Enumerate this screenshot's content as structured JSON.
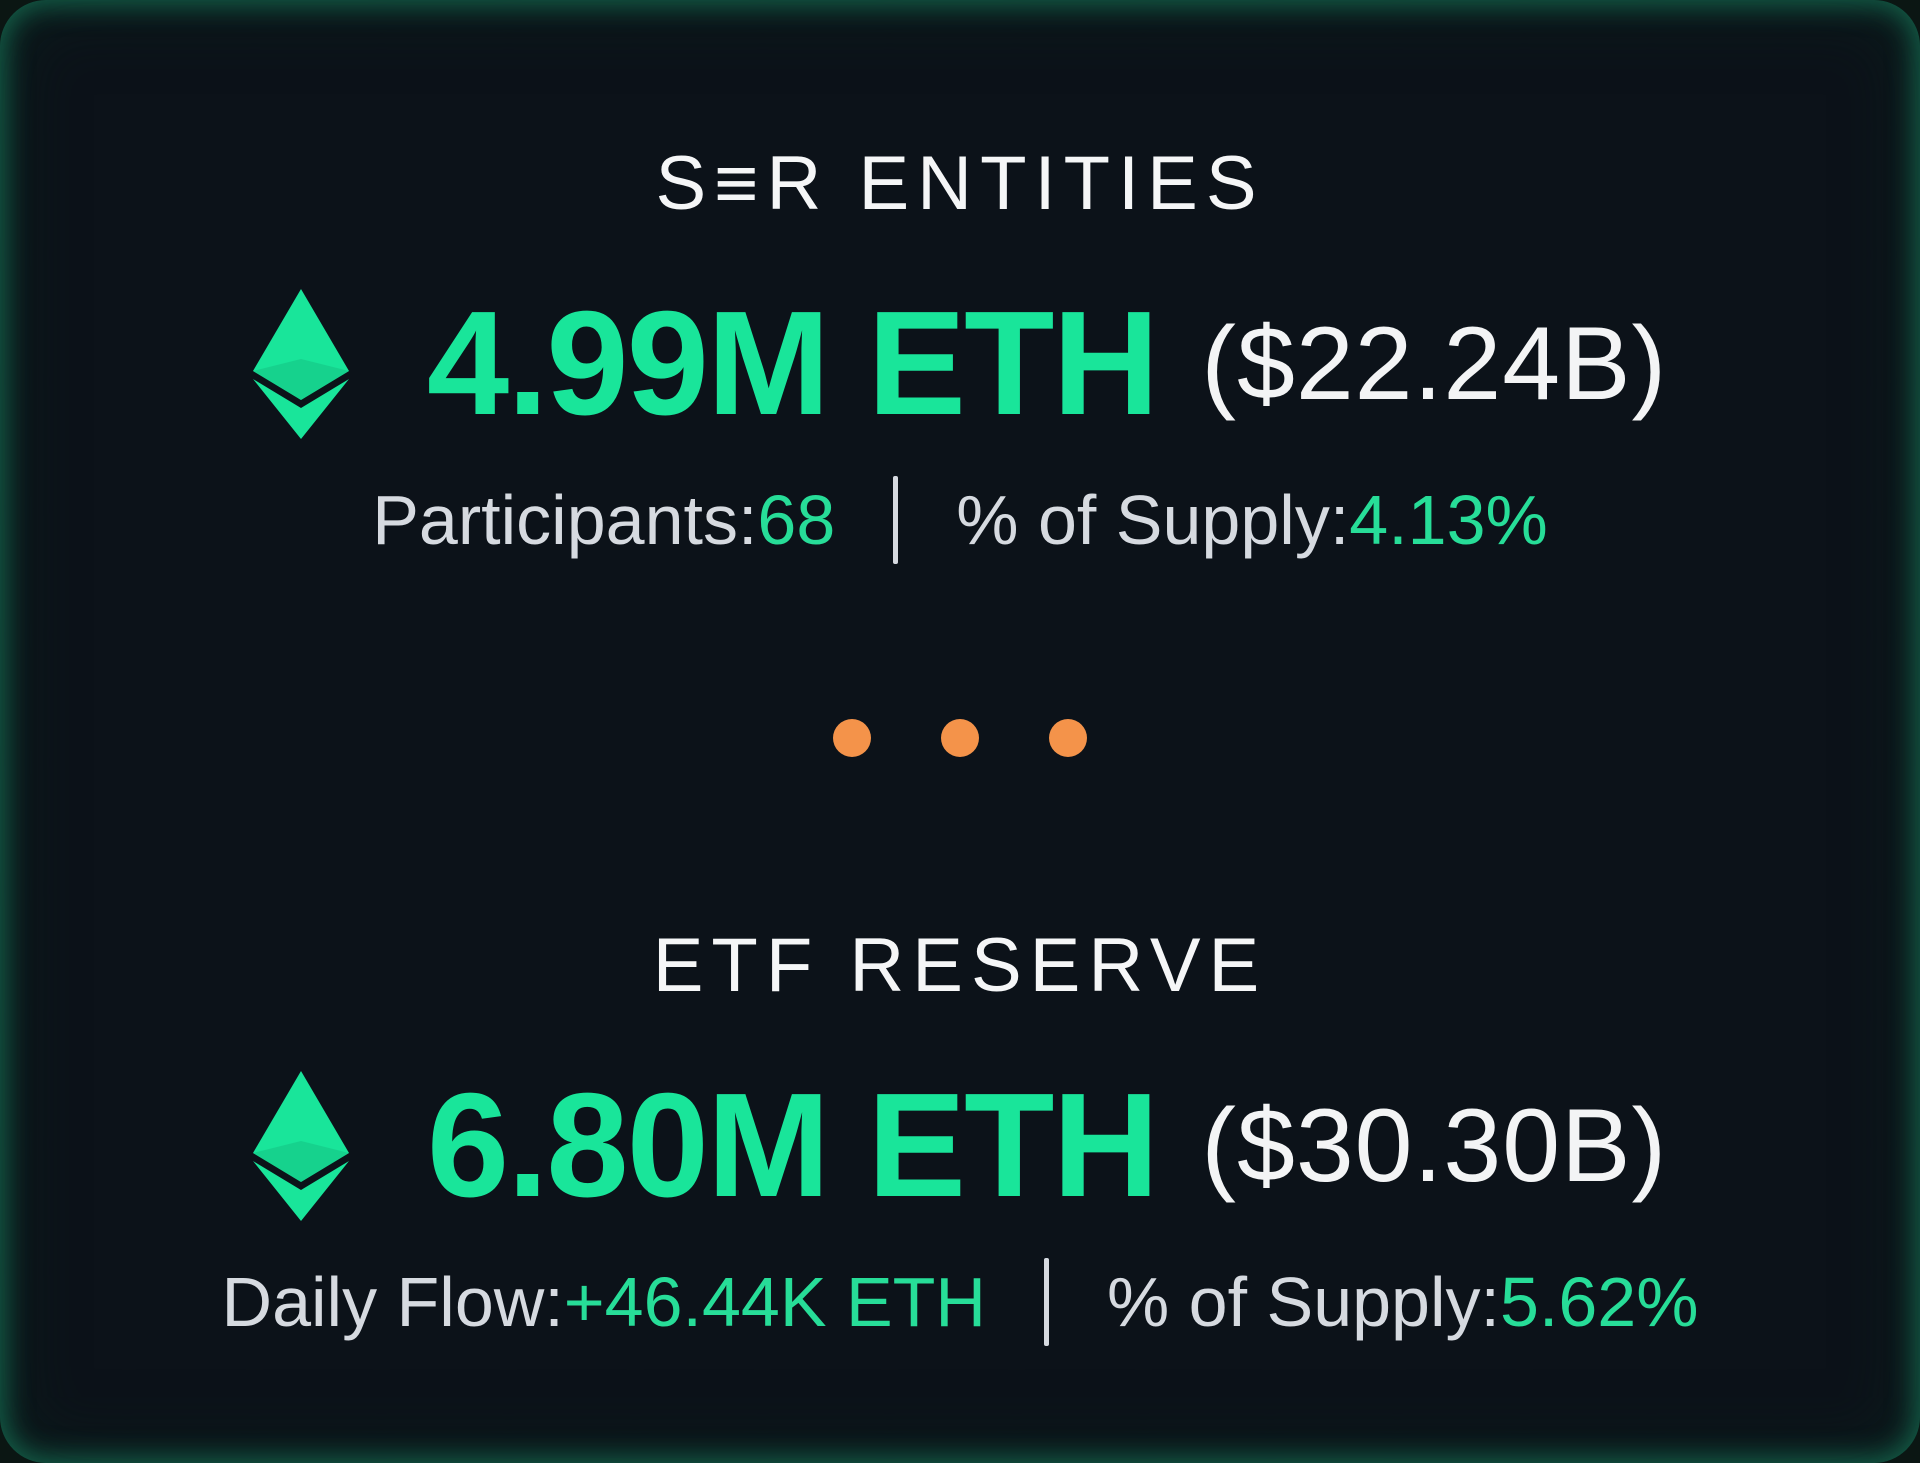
{
  "colors": {
    "accent_green": "#19e59a",
    "text_white": "#f3f4f5",
    "text_gray": "#d6dae0",
    "dot_orange": "#f4934a",
    "background": "#0c1219"
  },
  "ser_entities": {
    "title": "S≡R ENTITIES",
    "icon": "ethereum-icon",
    "amount": "4.99M ETH",
    "usd": "($22.24B)",
    "stat1_label": "Participants: ",
    "stat1_value": "68",
    "stat2_label": "% of Supply: ",
    "stat2_value": "4.13%"
  },
  "separator": {
    "icon": "ellipsis-dots",
    "color": "#f4934a"
  },
  "etf_reserve": {
    "title": "ETF RESERVE",
    "icon": "ethereum-icon",
    "amount": "6.80M ETH",
    "usd": "($30.30B)",
    "stat1_label": "Daily Flow: ",
    "stat1_value": "+46.44K ETH",
    "stat2_label": "% of Supply: ",
    "stat2_value": "5.62%"
  }
}
